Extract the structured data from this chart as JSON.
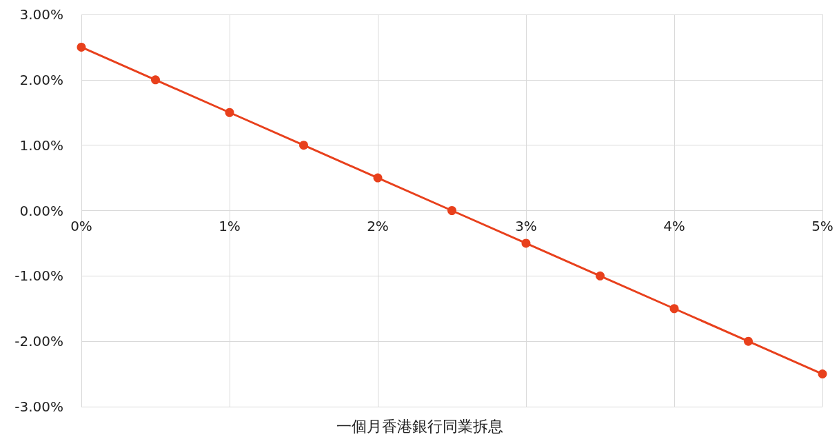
{
  "chart_data": {
    "type": "line",
    "xlabel": "一個月香港銀行同業拆息",
    "x": [
      0,
      0.5,
      1,
      1.5,
      2,
      2.5,
      3,
      3.5,
      4,
      4.5,
      5
    ],
    "series": [
      {
        "color": "#e8401c",
        "values": [
          2.5,
          2,
          1.5,
          1,
          0.5,
          0,
          -0.5,
          -1,
          -1.5,
          -2,
          -2.5
        ]
      }
    ],
    "xlim": [
      0,
      5
    ],
    "xticks": [
      {
        "value": 0,
        "label": "0%"
      },
      {
        "value": 1,
        "label": "1%"
      },
      {
        "value": 2,
        "label": "2%"
      },
      {
        "value": 3,
        "label": "3%"
      },
      {
        "value": 4,
        "label": "4%"
      },
      {
        "value": 5,
        "label": "5%"
      }
    ],
    "ylim": [
      -3,
      3
    ],
    "yticks": [
      {
        "value": -3,
        "label": "-3.00%"
      },
      {
        "value": -2,
        "label": "-2.00%"
      },
      {
        "value": -1,
        "label": "-1.00%"
      },
      {
        "value": 0,
        "label": "0.00%"
      },
      {
        "value": 1,
        "label": "1.00%"
      },
      {
        "value": 2,
        "label": "2.00%"
      },
      {
        "value": 3,
        "label": "3.00%"
      }
    ],
    "grid": true,
    "marker": "circle",
    "line_style": "solid"
  }
}
